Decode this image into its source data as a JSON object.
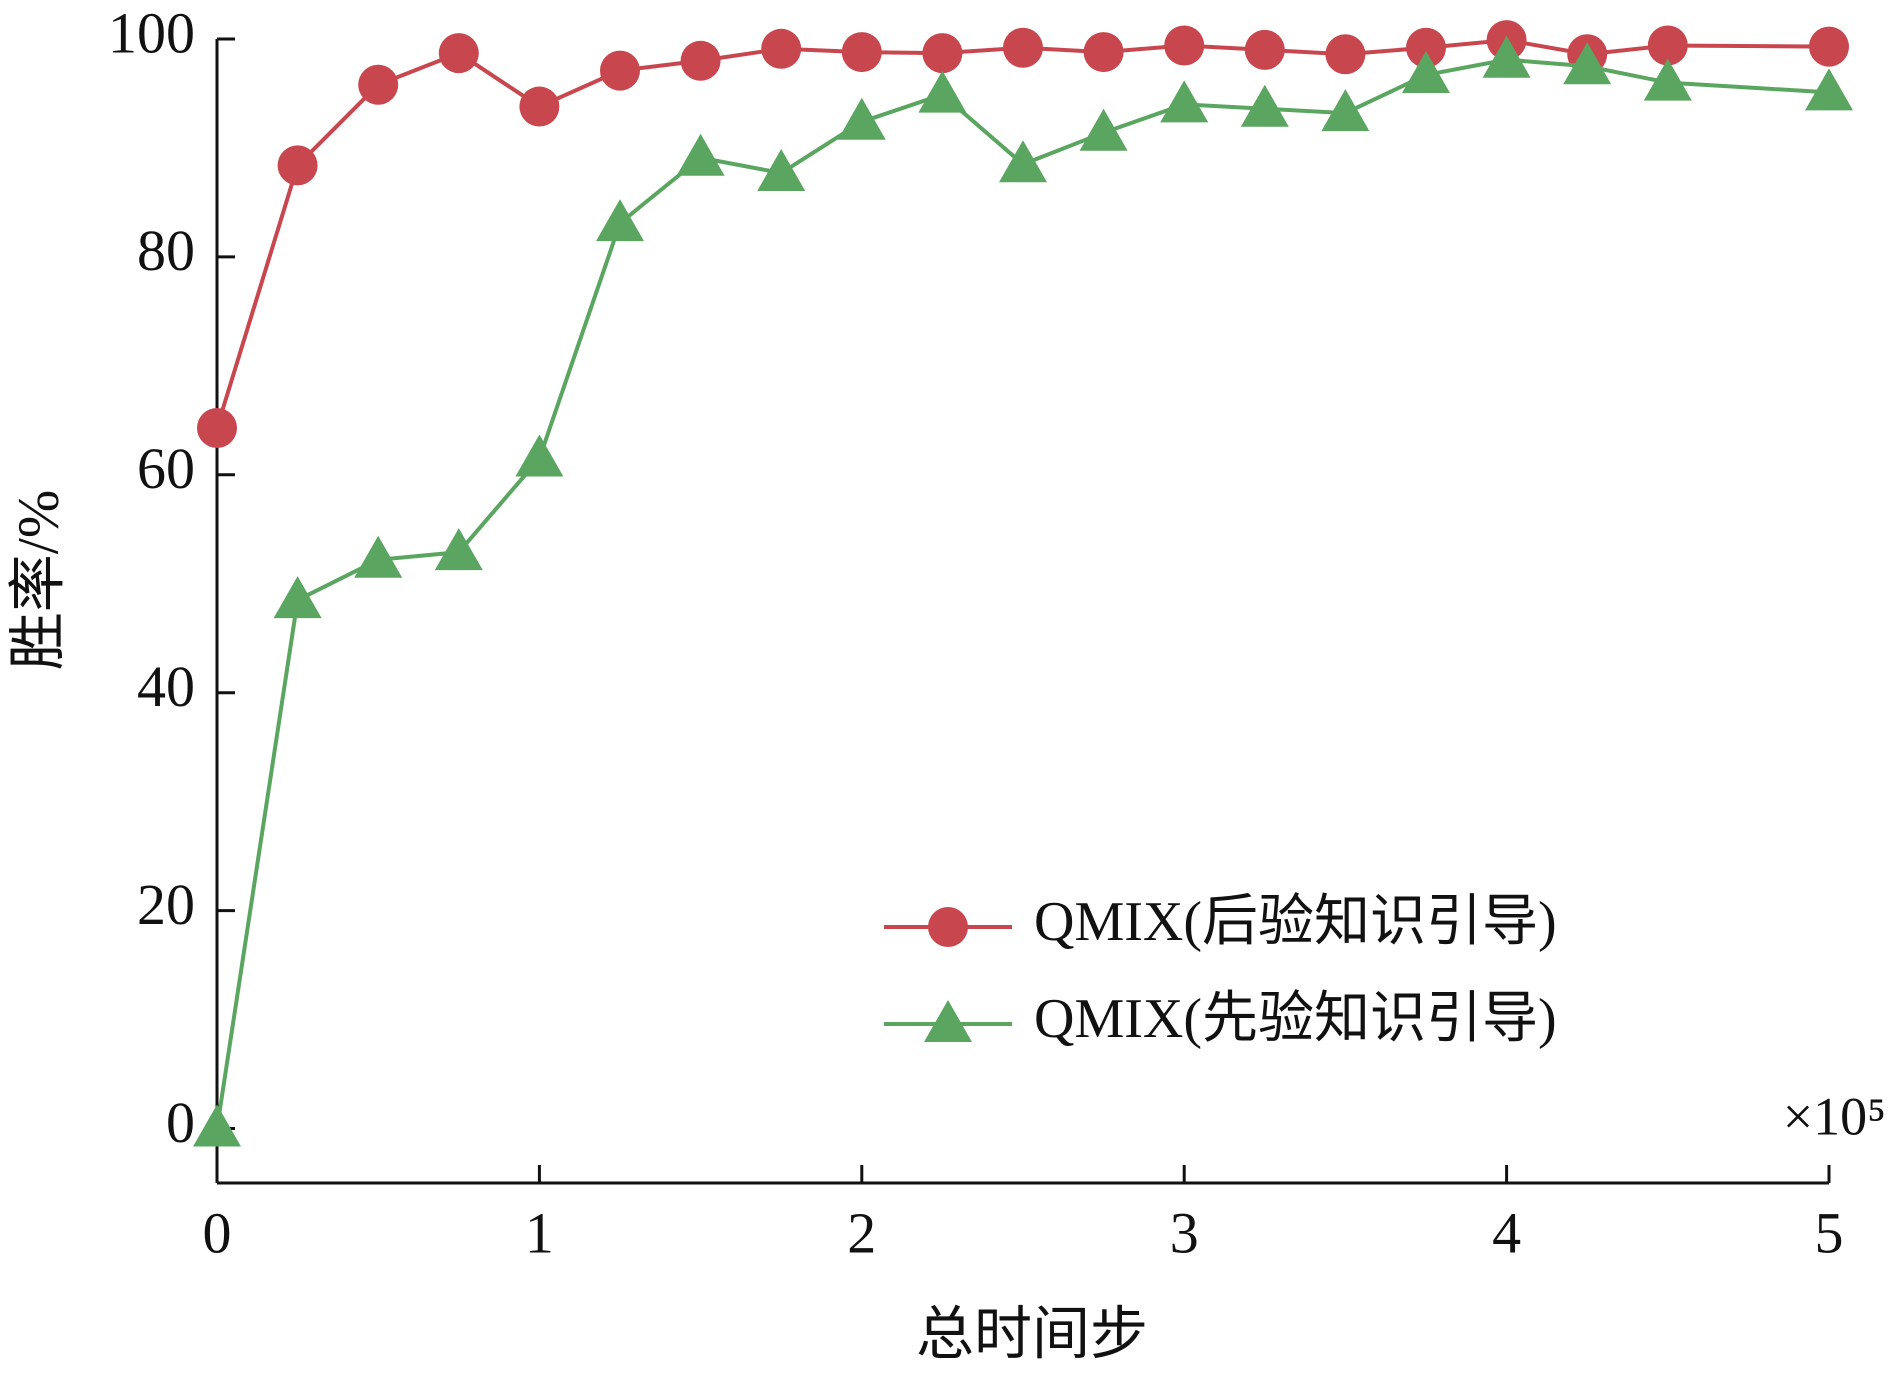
{
  "chart_data": {
    "type": "line",
    "x_label": "总时间步",
    "y_label": "胜率/%",
    "x_multiplier": "×10⁵",
    "x": [
      0,
      0.25,
      0.5,
      0.75,
      1,
      1.25,
      1.5,
      1.75,
      2,
      2.25,
      2.5,
      2.75,
      3,
      3.25,
      3.5,
      3.75,
      4,
      4.25,
      4.5,
      5
    ],
    "series": [
      {
        "name": "QMIX(后验知识引导)",
        "color": "#c8474f",
        "marker": "circle",
        "values": [
          64.3,
          88.4,
          95.8,
          98.7,
          93.8,
          97.1,
          98.0,
          99.1,
          98.8,
          98.7,
          99.2,
          98.8,
          99.4,
          99.0,
          98.6,
          99.2,
          99.9,
          98.6,
          99.4,
          99.3
        ]
      },
      {
        "name": "QMIX(先验知识引导)",
        "color": "#5aa661",
        "marker": "triangle",
        "values": [
          0,
          48.5,
          52.2,
          52.9,
          61.5,
          83.1,
          89.1,
          87.7,
          92.4,
          94.9,
          88.5,
          91.4,
          94.0,
          93.6,
          93.2,
          96.7,
          98.1,
          97.5,
          96.0,
          95.1
        ]
      }
    ],
    "xlim": [
      0,
      5
    ],
    "xticks": [
      0,
      1,
      2,
      3,
      4,
      5
    ],
    "ylim": [
      -5,
      100
    ],
    "yticks": [
      0,
      20,
      40,
      60,
      80,
      100
    ],
    "grid": false,
    "legend": "lower right"
  }
}
